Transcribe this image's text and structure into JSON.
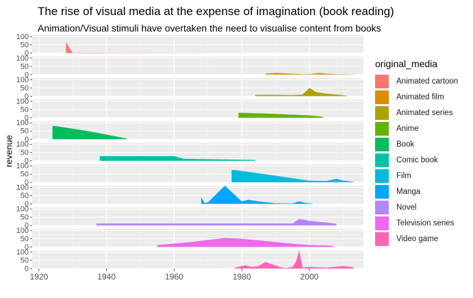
{
  "chart_data": {
    "type": "area",
    "title": "The rise of visual media at the expense of imagination (book reading)",
    "subtitle": "Animation/Visual stimuli have overtaken the need to visualise content from books",
    "ylabel": "revenue",
    "xlabel": "",
    "xlim": [
      1918,
      2016
    ],
    "ylim": [
      0,
      110
    ],
    "x_ticks": [
      1920,
      1940,
      1960,
      1980,
      2000
    ],
    "y_ticks": [
      0,
      50,
      100
    ],
    "grid": true,
    "legend_title": "original_media",
    "legend_position": "right",
    "series": [
      {
        "name": "Animated cartoon",
        "color": "#F8766D",
        "x": [
          1928,
          1930,
          1984
        ],
        "y": [
          65,
          2,
          0
        ]
      },
      {
        "name": "Animated film",
        "color": "#DB8E00",
        "x": [
          1987,
          1990,
          1992,
          1995,
          1998,
          2000,
          2003,
          2005,
          2008,
          2010,
          2013
        ],
        "y": [
          6,
          10,
          9,
          5,
          3,
          3,
          10,
          6,
          3,
          2,
          1
        ]
      },
      {
        "name": "Animated series",
        "color": "#AEA200",
        "x": [
          1984,
          1990,
          1995,
          1998,
          2000,
          2002,
          2005,
          2008,
          2011
        ],
        "y": [
          8,
          8,
          6,
          10,
          50,
          25,
          15,
          10,
          3
        ]
      },
      {
        "name": "Anime",
        "color": "#64B200",
        "x": [
          1979,
          1980,
          1990,
          2000,
          2004
        ],
        "y": [
          30,
          30,
          23,
          14,
          6
        ]
      },
      {
        "name": "Book",
        "color": "#00BD5C",
        "x": [
          1924,
          1925,
          1935,
          1946
        ],
        "y": [
          80,
          80,
          48,
          4
        ]
      },
      {
        "name": "Comic book",
        "color": "#00C1A7",
        "x": [
          1938,
          1960,
          1963,
          1970,
          1984
        ],
        "y": [
          28,
          28,
          12,
          10,
          5
        ]
      },
      {
        "name": "Film",
        "color": "#00BADE",
        "x": [
          1977,
          1978,
          1990,
          2000,
          2005,
          2008,
          2010,
          2013
        ],
        "y": [
          75,
          75,
          40,
          10,
          8,
          22,
          10,
          3
        ]
      },
      {
        "name": "Manga",
        "color": "#00A6FF",
        "x": [
          1968,
          1969,
          1970,
          1975,
          1980,
          1982,
          1985,
          1990,
          1995,
          1997,
          1999,
          2001
        ],
        "y": [
          40,
          5,
          10,
          110,
          15,
          25,
          15,
          4,
          3,
          15,
          5,
          2
        ]
      },
      {
        "name": "Novel",
        "color": "#B385FF",
        "x": [
          1937,
          1990,
          1995,
          1997,
          2000,
          2005,
          2008
        ],
        "y": [
          12,
          12,
          12,
          40,
          28,
          18,
          10
        ]
      },
      {
        "name": "Television series",
        "color": "#EF67EB",
        "x": [
          1955,
          1965,
          1975,
          1980,
          1985,
          1990,
          1995,
          2000,
          2007
        ],
        "y": [
          12,
          30,
          55,
          50,
          40,
          30,
          20,
          12,
          8
        ]
      },
      {
        "name": "Video game",
        "color": "#FF63B6",
        "x": [
          1978,
          1981,
          1983,
          1985,
          1987,
          1989,
          1992,
          1993,
          1995,
          1996,
          1997,
          1998,
          2000,
          2005,
          2010,
          2013
        ],
        "y": [
          5,
          20,
          10,
          15,
          40,
          25,
          5,
          3,
          10,
          40,
          110,
          6,
          10,
          5,
          15,
          8
        ]
      }
    ]
  }
}
